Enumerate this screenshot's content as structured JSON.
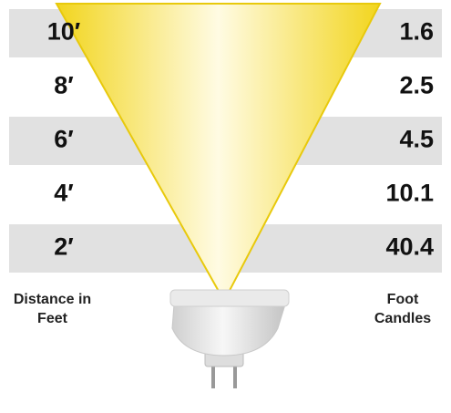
{
  "rows": [
    {
      "distance": "10′",
      "foot_candles": "1.6"
    },
    {
      "distance": "8′",
      "foot_candles": "2.5"
    },
    {
      "distance": "6′",
      "foot_candles": "4.5"
    },
    {
      "distance": "4′",
      "foot_candles": "10.1"
    },
    {
      "distance": "2′",
      "foot_candles": "40.4"
    }
  ],
  "labels": {
    "distance": "Distance in Feet",
    "foot_candles": "Foot Candles"
  }
}
